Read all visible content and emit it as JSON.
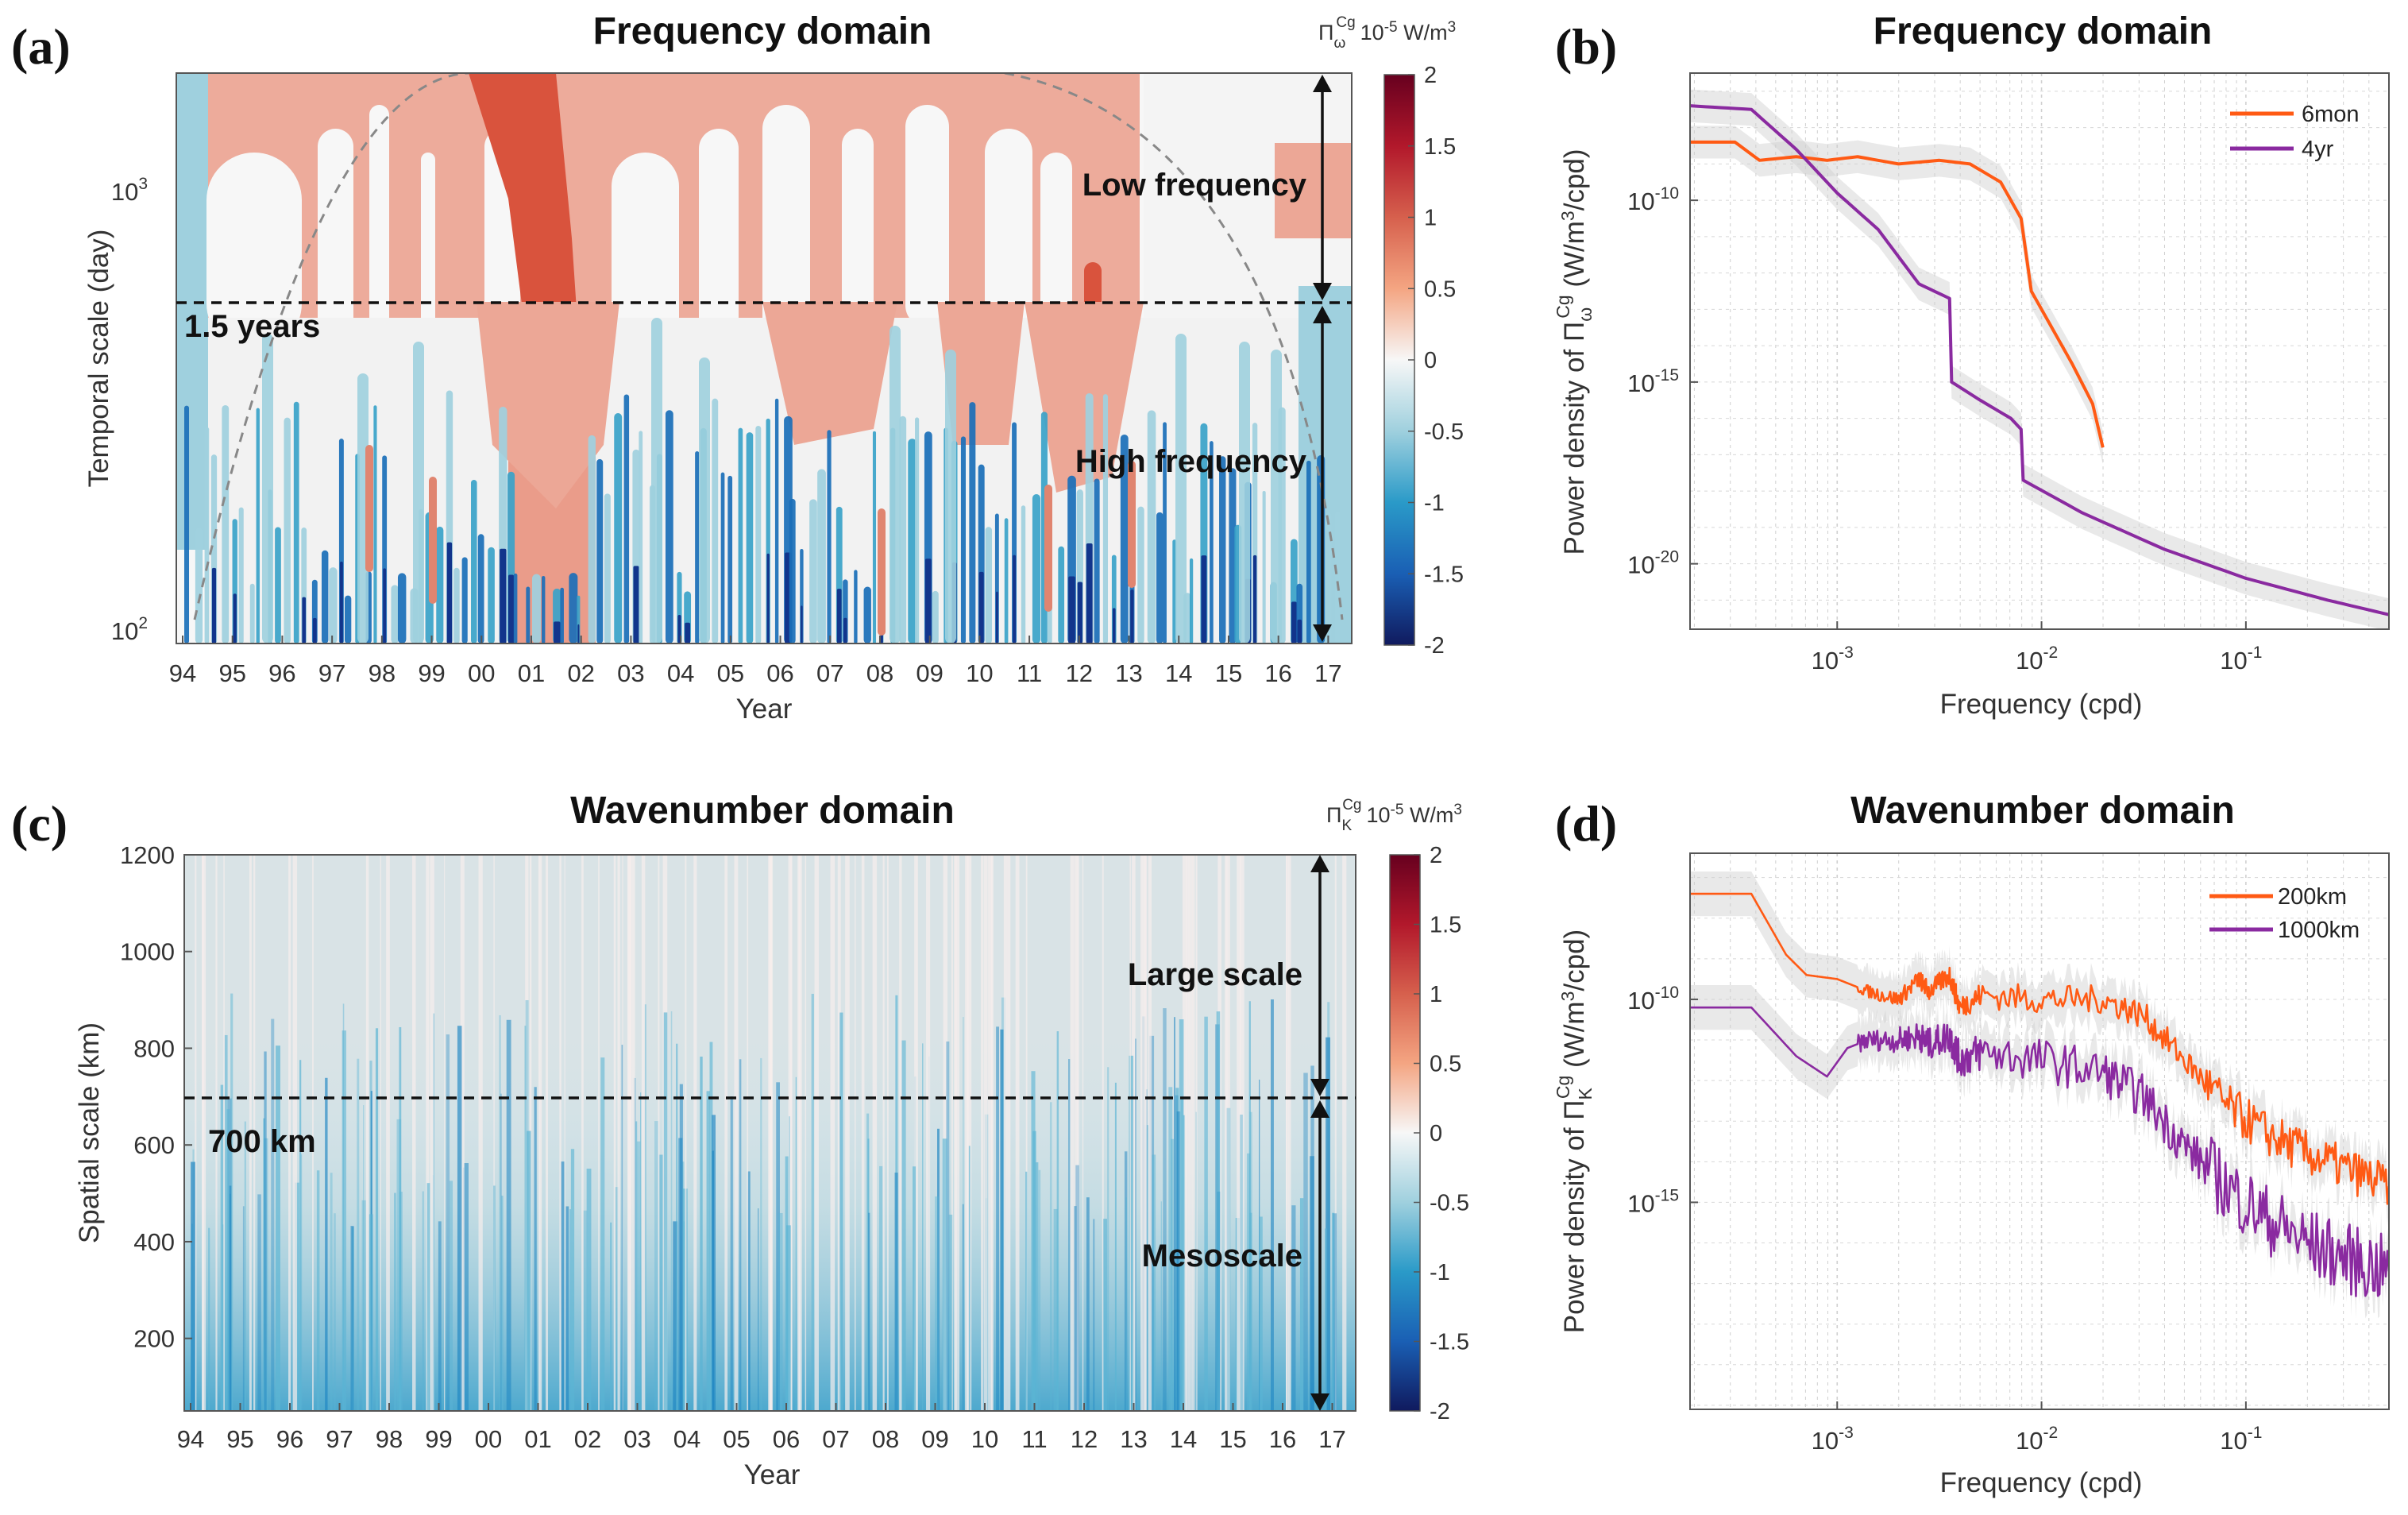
{
  "chart_data": [
    {
      "id": "a",
      "panel_label": "(a)",
      "type": "heatmap",
      "title": "Frequency domain",
      "xlabel": "Year",
      "ylabel": "Temporal scale (day)",
      "x_ticks": [
        "94",
        "95",
        "96",
        "97",
        "98",
        "99",
        "00",
        "01",
        "02",
        "03",
        "04",
        "05",
        "06",
        "07",
        "08",
        "09",
        "10",
        "11",
        "12",
        "13",
        "14",
        "15",
        "16",
        "17"
      ],
      "y_scale": "log",
      "ylim": [
        90,
        1750
      ],
      "y_ticks": [
        {
          "value": 100,
          "base": "10",
          "exp": "2"
        },
        {
          "value": 1000,
          "base": "10",
          "exp": "3"
        }
      ],
      "colorbar": {
        "symbol": "Π",
        "sub": "ω",
        "sup": "Cg",
        "unit_pre": "10",
        "unit_exp": "-5",
        "unit_post": " W/m",
        "unit_post_exp": "3",
        "ticks": [
          "2",
          "1.5",
          "1",
          "0.5",
          "0",
          "-0.5",
          "-1",
          "-1.5",
          "-2"
        ],
        "range": [
          -2,
          2
        ]
      },
      "threshold": {
        "value": 547,
        "label": "1.5 years"
      },
      "band_labels": [
        "Low frequency",
        "High frequency"
      ],
      "cone_of_influence": true
    },
    {
      "id": "b",
      "panel_label": "(b)",
      "type": "line",
      "title": "Frequency domain",
      "xlabel": "Frequency (cpd)",
      "ylabel_pre": "Power density of Π",
      "ylabel_sub": "ω",
      "ylabel_sup": "Cg",
      "ylabel_post": " (W/m",
      "ylabel_post_exp": "3",
      "ylabel_tail": "/cpd)",
      "x_scale": "log",
      "y_scale": "log",
      "xlim_log10": [
        -3.72,
        -0.3
      ],
      "ylim_log10": [
        -21.8,
        -6.5
      ],
      "x_ticks": [
        {
          "log": -3,
          "base": "10",
          "exp": "-3"
        },
        {
          "log": -2,
          "base": "10",
          "exp": "-2"
        },
        {
          "log": -1,
          "base": "10",
          "exp": "-1"
        }
      ],
      "y_ticks": [
        {
          "log": -10,
          "base": "10",
          "exp": "-10"
        },
        {
          "log": -15,
          "base": "10",
          "exp": "-15"
        },
        {
          "log": -20,
          "base": "10",
          "exp": "-20"
        }
      ],
      "series": [
        {
          "name": "6mon",
          "color": "#ff5a14",
          "log_x": [
            -3.72,
            -3.5,
            -3.38,
            -3.2,
            -3.05,
            -2.9,
            -2.7,
            -2.5,
            -2.35,
            -2.2,
            -2.1,
            -2.05,
            -1.95,
            -1.85,
            -1.75,
            -1.7
          ],
          "log_y": [
            -8.4,
            -8.4,
            -8.9,
            -8.8,
            -8.9,
            -8.8,
            -9.0,
            -8.9,
            -9.0,
            -9.5,
            -10.5,
            -12.5,
            -13.5,
            -14.5,
            -15.6,
            -16.8
          ]
        },
        {
          "name": "4yr",
          "color": "#8a2aa0",
          "log_x": [
            -3.72,
            -3.42,
            -3.2,
            -3.0,
            -2.8,
            -2.6,
            -2.45,
            -2.44,
            -2.3,
            -2.15,
            -2.1,
            -2.09,
            -1.8,
            -1.4,
            -1.0,
            -0.6,
            -0.3
          ],
          "log_y": [
            -7.4,
            -7.5,
            -8.6,
            -9.8,
            -10.8,
            -12.3,
            -12.7,
            -15.0,
            -15.5,
            -16.0,
            -16.3,
            -17.7,
            -18.6,
            -19.6,
            -20.4,
            -21.0,
            -21.4
          ]
        }
      ]
    },
    {
      "id": "c",
      "panel_label": "(c)",
      "type": "heatmap",
      "title": "Wavenumber domain",
      "xlabel": "Year",
      "ylabel": "Spatial scale (km)",
      "x_ticks": [
        "94",
        "95",
        "96",
        "97",
        "98",
        "99",
        "00",
        "01",
        "02",
        "03",
        "04",
        "05",
        "06",
        "07",
        "08",
        "09",
        "10",
        "11",
        "12",
        "13",
        "14",
        "15",
        "16",
        "17"
      ],
      "ylim": [
        50,
        1200
      ],
      "y_ticks": [
        200,
        400,
        600,
        800,
        1000,
        1200
      ],
      "colorbar": {
        "symbol": "Π",
        "sub": "K",
        "sup": "Cg",
        "unit_pre": "10",
        "unit_exp": "-5",
        "unit_post": " W/m",
        "unit_post_exp": "3",
        "ticks": [
          "2",
          "1.5",
          "1",
          "0.5",
          "0",
          "-0.5",
          "-1",
          "-1.5",
          "-2"
        ],
        "range": [
          -2,
          2
        ]
      },
      "threshold": {
        "value": 700,
        "label": "700 km"
      },
      "band_labels": [
        "Large scale",
        "Mesoscale"
      ]
    },
    {
      "id": "d",
      "panel_label": "(d)",
      "type": "line",
      "title": "Wavenumber domain",
      "xlabel": "Frequency (cpd)",
      "ylabel_pre": "Power density of Π",
      "ylabel_sub": "K",
      "ylabel_sup": "Cg",
      "ylabel_post": " (W/m",
      "ylabel_post_exp": "3",
      "ylabel_tail": "/cpd)",
      "x_scale": "log",
      "y_scale": "log",
      "xlim_log10": [
        -3.72,
        -0.3
      ],
      "ylim_log10": [
        -20.1,
        -6.4
      ],
      "x_ticks": [
        {
          "log": -3,
          "base": "10",
          "exp": "-3"
        },
        {
          "log": -2,
          "base": "10",
          "exp": "-2"
        },
        {
          "log": -1,
          "base": "10",
          "exp": "-1"
        }
      ],
      "y_ticks": [
        {
          "log": -10,
          "base": "10",
          "exp": "-10"
        },
        {
          "log": -15,
          "base": "10",
          "exp": "-15"
        }
      ],
      "series": [
        {
          "name": "200km",
          "color": "#ff5a14",
          "log_x": [
            -3.72,
            -3.42,
            -3.25,
            -3.15,
            -3.0,
            -2.85,
            -2.7,
            -2.6,
            -2.55,
            -2.45,
            -2.4,
            -2.3,
            -2.0,
            -1.7,
            -1.5,
            -1.3,
            -1.1,
            -0.9,
            -0.7,
            -0.5,
            -0.3
          ],
          "log_y": [
            -7.4,
            -7.4,
            -8.9,
            -9.4,
            -9.5,
            -9.8,
            -10.0,
            -9.5,
            -9.8,
            -9.4,
            -10.2,
            -9.9,
            -10.0,
            -10.0,
            -10.4,
            -11.5,
            -12.6,
            -13.3,
            -13.8,
            -14.2,
            -14.6
          ],
          "noise": 0.35
        },
        {
          "name": "1000km",
          "color": "#8a2aa0",
          "log_x": [
            -3.72,
            -3.42,
            -3.2,
            -3.05,
            -2.95,
            -2.85,
            -2.7,
            -2.6,
            -2.55,
            -2.45,
            -2.4,
            -2.3,
            -2.0,
            -1.7,
            -1.5,
            -1.3,
            -1.1,
            -0.9,
            -0.7,
            -0.5,
            -0.3
          ],
          "log_y": [
            -10.2,
            -10.2,
            -11.4,
            -11.9,
            -11.2,
            -11.0,
            -11.0,
            -10.9,
            -11.1,
            -10.9,
            -11.5,
            -11.3,
            -11.5,
            -11.8,
            -12.4,
            -13.6,
            -14.6,
            -15.4,
            -16.0,
            -16.4,
            -16.7
          ],
          "noise": 0.55
        }
      ]
    }
  ]
}
